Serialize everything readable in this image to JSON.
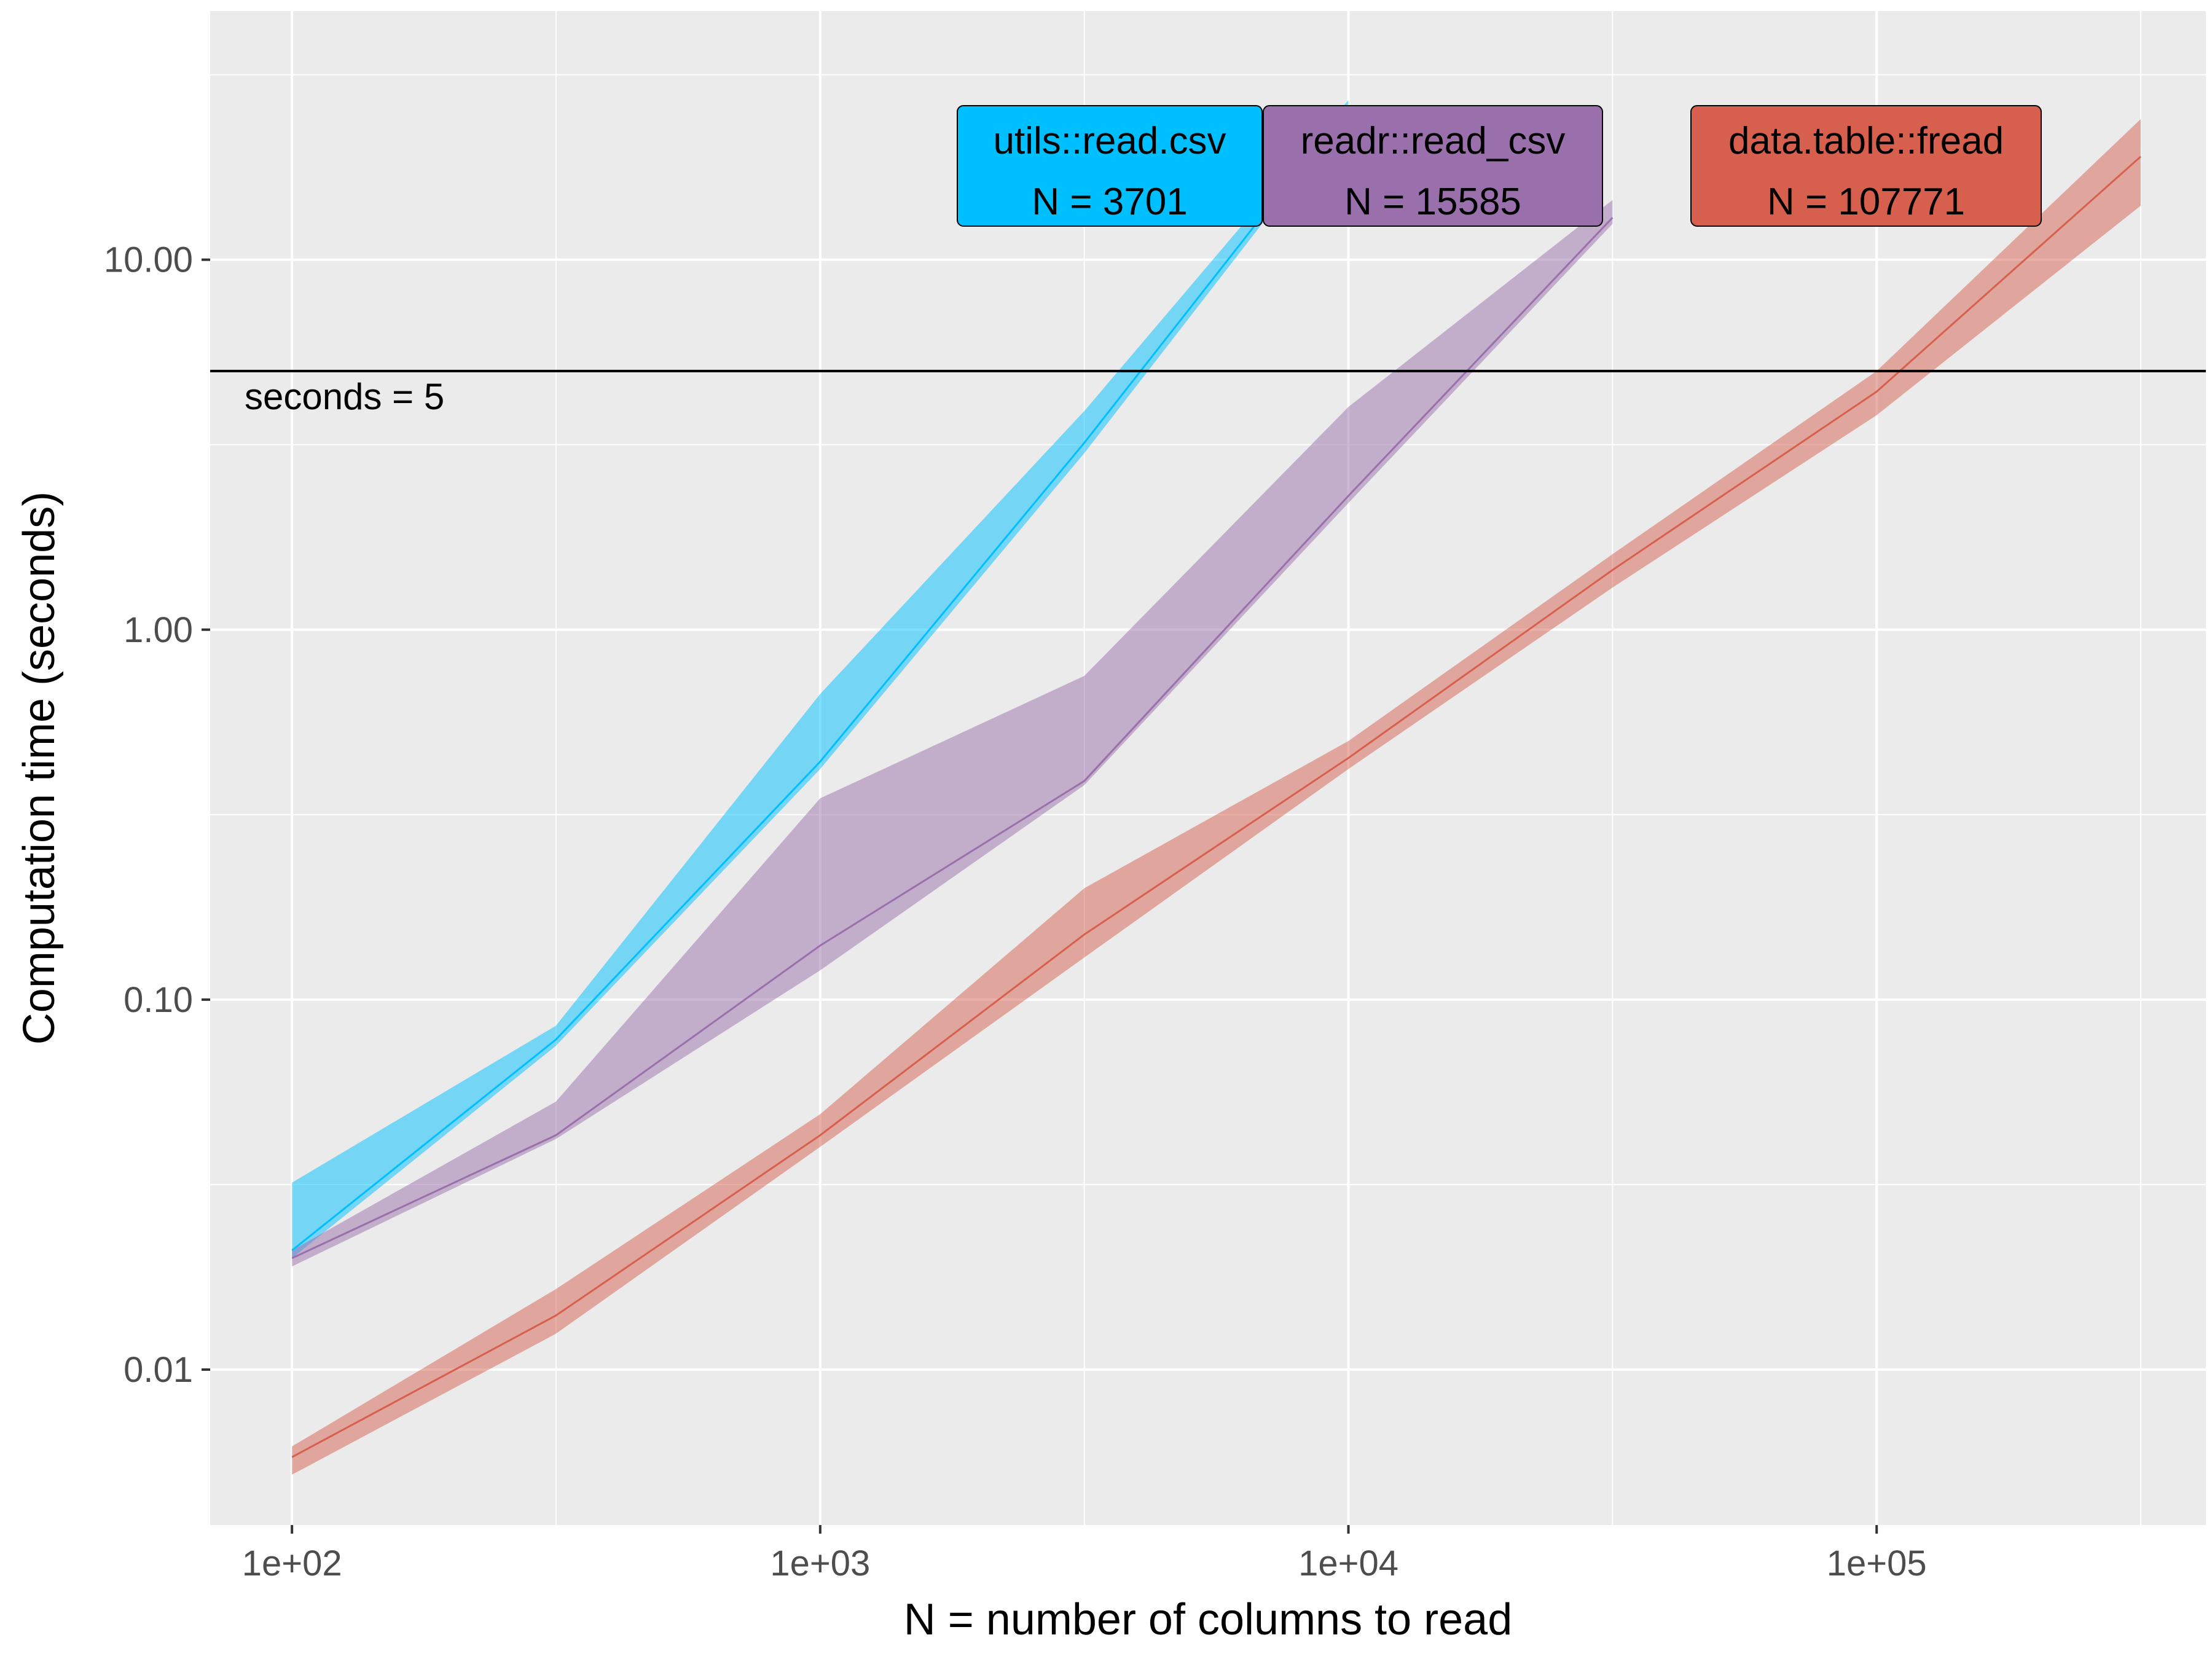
{
  "chart_data": {
    "type": "line",
    "title": "",
    "xlabel": "N = number of columns to read",
    "ylabel": "Computation time (seconds)",
    "x_scale": "log10",
    "y_scale": "log10",
    "xlim": [
      70,
      420000
    ],
    "ylim": [
      0.0038,
      47
    ],
    "x_ticks": [
      100,
      1000,
      10000,
      100000
    ],
    "x_tick_labels": [
      "1e+02",
      "1e+03",
      "1e+04",
      "1e+05"
    ],
    "y_ticks": [
      0.01,
      0.1,
      1,
      10
    ],
    "y_tick_labels": [
      "0.01",
      "0.10",
      "1.00",
      "10.00"
    ],
    "grid": true,
    "reference_line": {
      "y": 5,
      "label": "seconds = 5"
    },
    "series": [
      {
        "name": "utils::read.csv",
        "color": "#00bfff",
        "x": [
          100,
          316,
          1000,
          3162,
          10000
        ],
        "median": [
          0.021,
          0.078,
          0.44,
          3.2,
          26
        ],
        "min": [
          0.02,
          0.075,
          0.42,
          3.0,
          25
        ],
        "max": [
          0.032,
          0.085,
          0.67,
          3.9,
          27
        ],
        "label_lines": [
          "utils::read.csv",
          "N = 3701"
        ]
      },
      {
        "name": "readr::read_csv",
        "color": "#9970ab",
        "x": [
          100,
          316,
          1000,
          3162,
          10000,
          31623
        ],
        "median": [
          0.02,
          0.043,
          0.14,
          0.39,
          2.3,
          13
        ],
        "min": [
          0.019,
          0.042,
          0.12,
          0.38,
          2.2,
          12.5
        ],
        "max": [
          0.021,
          0.053,
          0.35,
          0.75,
          4.0,
          14.5
        ],
        "label_lines": [
          "readr::read_csv",
          "N = 15585"
        ]
      },
      {
        "name": "data.table::fread",
        "color": "#d6604d",
        "x": [
          100,
          316,
          1000,
          3162,
          10000,
          31623,
          100000,
          316228
        ],
        "median": [
          0.0058,
          0.014,
          0.043,
          0.15,
          0.45,
          1.45,
          4.4,
          19
        ],
        "min": [
          0.0052,
          0.0125,
          0.04,
          0.13,
          0.42,
          1.3,
          3.8,
          14
        ],
        "max": [
          0.0062,
          0.0165,
          0.049,
          0.2,
          0.5,
          1.6,
          5.0,
          24
        ],
        "label_lines": [
          "data.table::fread",
          "N = 107771"
        ]
      }
    ]
  }
}
